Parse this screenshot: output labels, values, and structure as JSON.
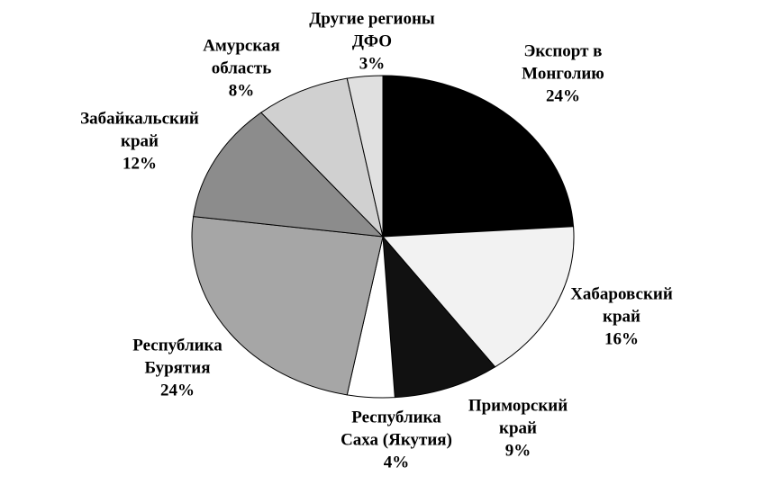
{
  "chart_data": {
    "type": "pie",
    "categories": [
      [
        "Экспорт в",
        "Монголию"
      ],
      [
        "Хабаровский",
        "край"
      ],
      [
        "Приморский",
        "край"
      ],
      [
        "Республика",
        "Саха (Якутия)"
      ],
      [
        "Республика",
        "Бурятия"
      ],
      [
        "Забайкальский",
        "край"
      ],
      [
        "Амурская",
        "область"
      ],
      [
        "Другие регионы",
        "ДФО"
      ]
    ],
    "values": [
      24,
      16,
      9,
      4,
      24,
      12,
      8,
      3
    ],
    "value_labels": [
      "24%",
      "16%",
      "9%",
      "4%",
      "24%",
      "12%",
      "8%",
      "3%"
    ],
    "colors": [
      "#000000",
      "#f2f2f2",
      "#111111",
      "#ffffff",
      "#a6a6a6",
      "#8c8c8c",
      "#d0d0d0",
      "#e0e0e0"
    ]
  }
}
